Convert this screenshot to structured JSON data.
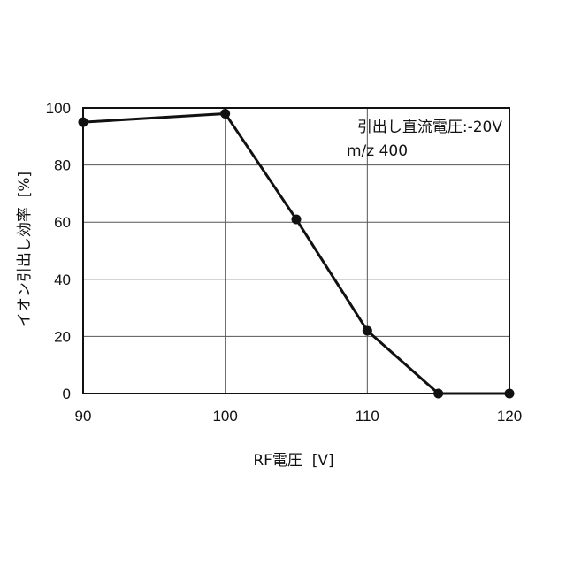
{
  "chart_data": {
    "type": "line",
    "title": "",
    "xlabel": "RF電圧  [V]",
    "ylabel": "イオン引出し効率  [%]",
    "xlim": [
      90,
      120
    ],
    "ylim": [
      0,
      100
    ],
    "x_ticks": [
      90,
      100,
      110,
      120
    ],
    "y_ticks": [
      0,
      20,
      40,
      60,
      80,
      100
    ],
    "grid": true,
    "annotations": [
      "引出し直流電圧:-20V",
      "m/z 400"
    ],
    "series": [
      {
        "x": [
          90,
          100,
          105,
          110,
          115,
          120
        ],
        "y": [
          95,
          98,
          61,
          22,
          0,
          0
        ]
      }
    ]
  }
}
